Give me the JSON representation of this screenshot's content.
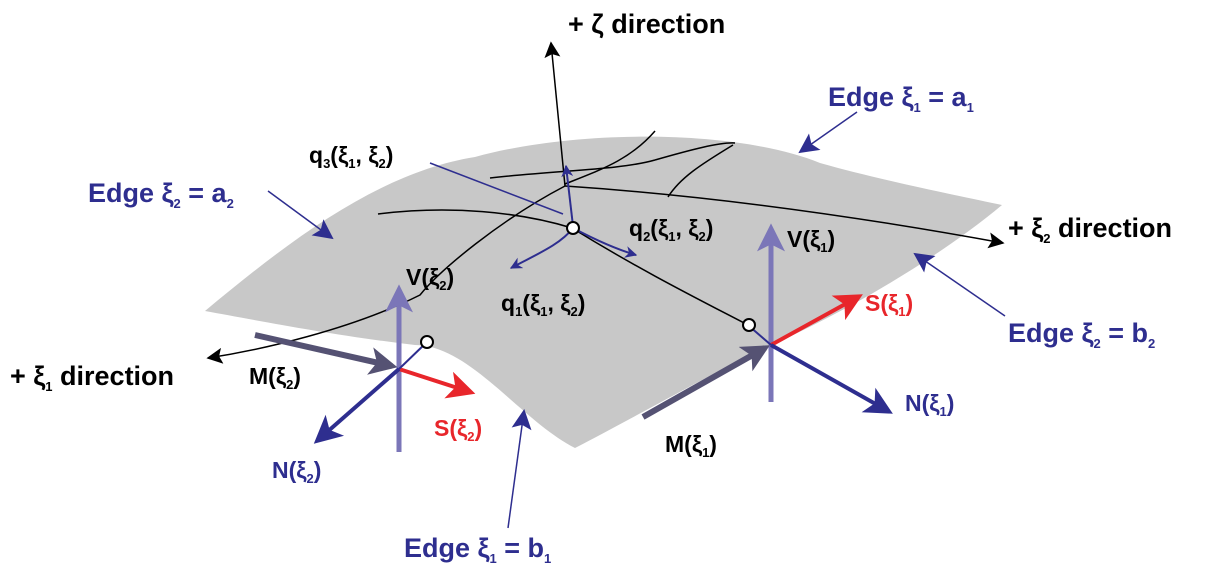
{
  "colors": {
    "surface": "#c8c8c8",
    "black": "#000000",
    "navy": "#2e2e8f",
    "lavender": "#7b76b8",
    "red": "#e8262b",
    "slate": "#555273"
  },
  "labels": {
    "zeta_direction": {
      "main": "+ ζ direction"
    },
    "xi2_direction": {
      "prefix": "+ ξ",
      "sub": "2",
      "suffix": " direction"
    },
    "xi1_direction": {
      "prefix": "+ ξ",
      "sub": "1",
      "suffix": " direction"
    },
    "edge_a1": {
      "prefix": "Edge ξ",
      "sub1": "1",
      "mid": " = a",
      "sub2": "1"
    },
    "edge_a2": {
      "prefix": "Edge ξ",
      "sub1": "2",
      "mid": " = a",
      "sub2": "2"
    },
    "edge_b1": {
      "prefix": "Edge ξ",
      "sub1": "1",
      "mid": " = b",
      "sub2": "1"
    },
    "edge_b2": {
      "prefix": "Edge ξ",
      "sub1": "2",
      "mid": " = b",
      "sub2": "2"
    },
    "q3": {
      "base": "q",
      "idx": "3",
      "open": "(ξ",
      "s1": "1",
      "comma": ", ξ",
      "s2": "2",
      "close": ")"
    },
    "q2": {
      "base": "q",
      "idx": "2",
      "open": "(ξ",
      "s1": "1",
      "comma": ", ξ",
      "s2": "2",
      "close": ")"
    },
    "q1": {
      "base": "q",
      "idx": "1",
      "open": "(ξ",
      "s1": "1",
      "comma": ", ξ",
      "s2": "2",
      "close": ")"
    },
    "v_xi2": {
      "base": "V(ξ",
      "sub": "2",
      "close": ")"
    },
    "v_xi1": {
      "base": "V(ξ",
      "sub": "1",
      "close": ")"
    },
    "m_xi2": {
      "base": "M(ξ",
      "sub": "2",
      "close": ")"
    },
    "m_xi1": {
      "base": "M(ξ",
      "sub": "1",
      "close": ")"
    },
    "s_xi2": {
      "base": "S(ξ",
      "sub": "2",
      "close": ")"
    },
    "s_xi1": {
      "base": "S(ξ",
      "sub": "1",
      "close": ")"
    },
    "n_xi2": {
      "base": "N(ξ",
      "sub": "2",
      "close": ")"
    },
    "n_xi1": {
      "base": "N(ξ",
      "sub": "1",
      "close": ")"
    }
  }
}
